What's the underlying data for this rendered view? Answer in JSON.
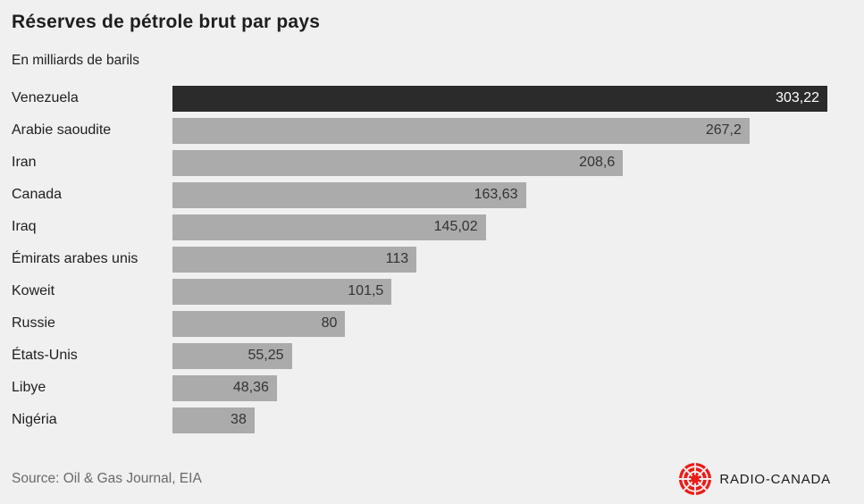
{
  "header": {
    "title": "Réserves de pétrole brut par pays",
    "subtitle": "En milliards de barils"
  },
  "chart_data": {
    "type": "bar",
    "orientation": "horizontal",
    "title": "Réserves de pétrole brut par pays",
    "subtitle": "En milliards de barils",
    "unit": "milliards de barils",
    "categories": [
      "Venezuela",
      "Arabie saoudite",
      "Iran",
      "Canada",
      "Iraq",
      "Émirats arabes unis",
      "Koweit",
      "Russie",
      "États-Unis",
      "Libye",
      "Nigéria"
    ],
    "values": [
      303.22,
      267.2,
      208.6,
      163.63,
      145.02,
      113,
      101.5,
      80,
      55.25,
      48.36,
      38
    ],
    "value_labels": [
      "303,22",
      "267,2",
      "208,6",
      "163,63",
      "145,02",
      "113",
      "101,5",
      "80",
      "55,25",
      "48,36",
      "38"
    ],
    "xlabel": "",
    "ylabel": "",
    "xlim": [
      0,
      303.22
    ],
    "grid": false,
    "legend": false,
    "value_label_position": "inside-end",
    "highlight_index": 0,
    "bar_color": "#ababab",
    "highlight_bar_color": "#2b2b2b",
    "value_label_color": "#333333",
    "highlight_value_label_color": "#ffffff"
  },
  "footer": {
    "source": "Source: Oil & Gas Journal, EIA",
    "logo": {
      "wordmark": "RADIO-CANADA",
      "gem_icon": "radio-canada-gem-icon",
      "gem_color": "#ed1b18",
      "wordmark_color": "#1a1a1a"
    }
  },
  "colors": {
    "background": "#f0f0f0",
    "title_text": "#1e1e1e",
    "label_text": "#1e1e1e",
    "source_text": "#696969"
  }
}
